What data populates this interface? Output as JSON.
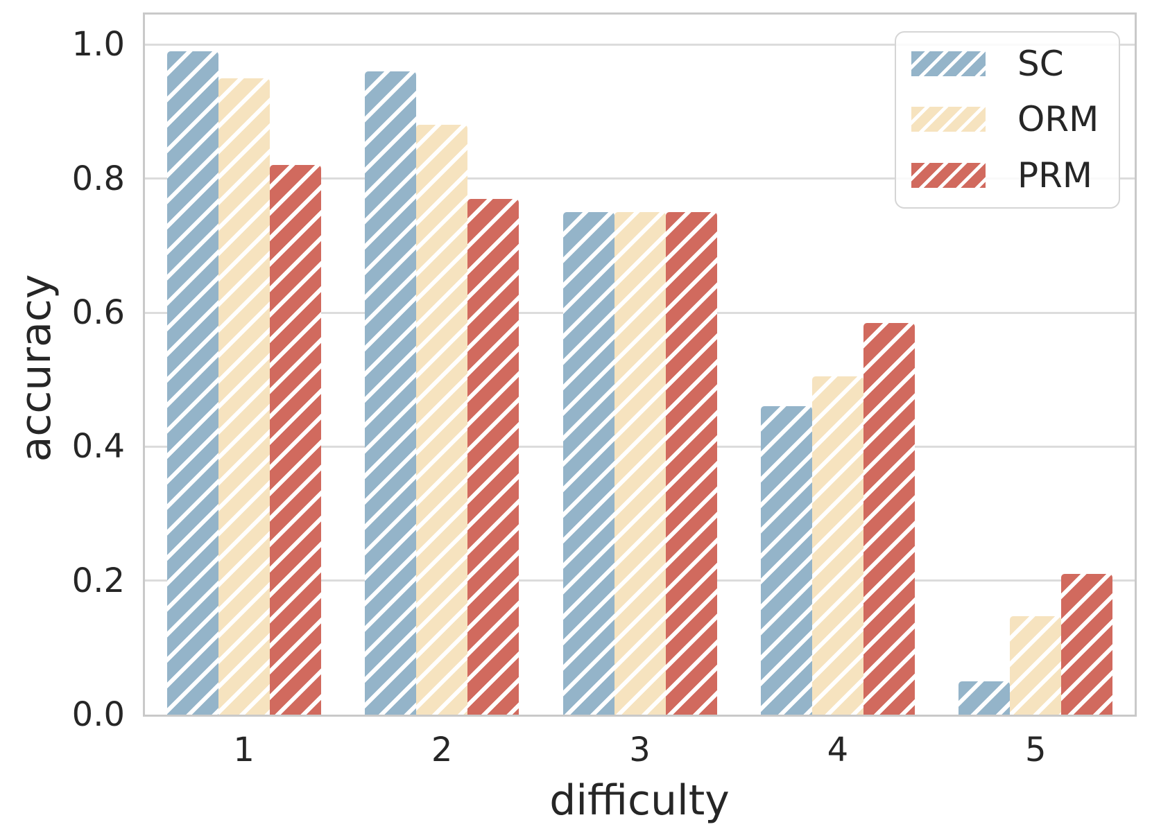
{
  "chart_data": {
    "type": "bar",
    "title": "",
    "xlabel": "difficulty",
    "ylabel": "accuracy",
    "categories": [
      "1",
      "2",
      "3",
      "4",
      "5"
    ],
    "series": [
      {
        "name": "SC",
        "color": "#94b4c9",
        "values": [
          0.99,
          0.96,
          0.75,
          0.46,
          0.05
        ]
      },
      {
        "name": "ORM",
        "color": "#f6e3bf",
        "values": [
          0.95,
          0.88,
          0.75,
          0.505,
          0.147
        ]
      },
      {
        "name": "PRM",
        "color": "#d16a5e",
        "values": [
          0.82,
          0.77,
          0.75,
          0.585,
          0.21
        ]
      }
    ],
    "ylim": [
      0,
      1.045
    ],
    "yticks": [
      0.0,
      0.2,
      0.4,
      0.6,
      0.8,
      1.0
    ],
    "ytick_labels": [
      "0.0",
      "0.2",
      "0.4",
      "0.6",
      "0.8",
      "1.0"
    ],
    "grid": true,
    "hatch": "/",
    "legend_position": "upper right"
  },
  "style": {
    "grid_color": "#dcdcdc",
    "spine_color": "#c9c9c9",
    "hatch_color": "#ffffff",
    "text_color": "#262626"
  }
}
